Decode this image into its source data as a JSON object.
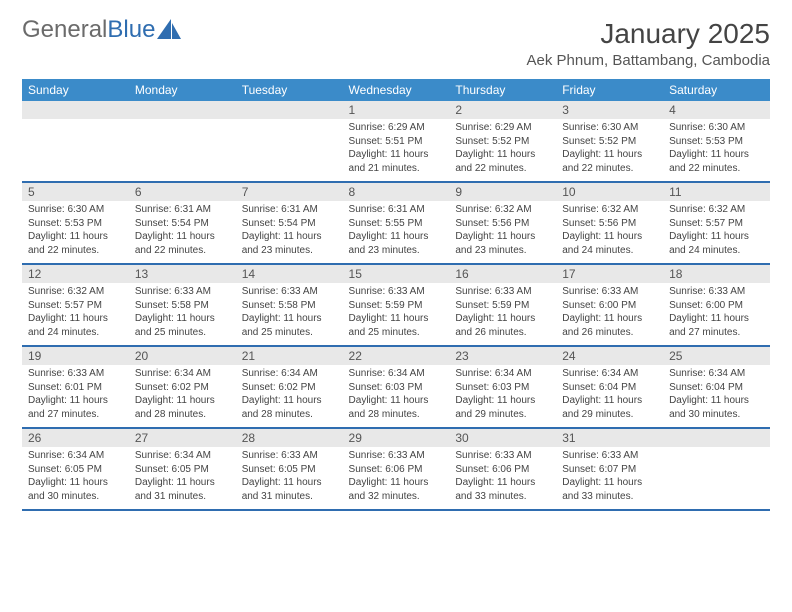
{
  "logo": {
    "word1": "General",
    "word2": "Blue"
  },
  "title": "January 2025",
  "location": "Aek Phnum, Battambang, Cambodia",
  "colors": {
    "header_bg": "#3b8bc9",
    "header_text": "#ffffff",
    "row_border": "#2f6db0",
    "daynum_bg": "#e8e8e8",
    "text": "#444444",
    "logo_gray": "#6b6b6b",
    "logo_blue": "#2f6db0"
  },
  "typography": {
    "title_fontsize": 28,
    "location_fontsize": 15,
    "header_fontsize": 12,
    "daynum_fontsize": 12,
    "body_fontsize": 10
  },
  "layout": {
    "columns": 7,
    "rows": 5
  },
  "weekdays": [
    "Sunday",
    "Monday",
    "Tuesday",
    "Wednesday",
    "Thursday",
    "Friday",
    "Saturday"
  ],
  "weeks": [
    [
      null,
      null,
      null,
      {
        "n": "1",
        "sr": "Sunrise: 6:29 AM",
        "ss": "Sunset: 5:51 PM",
        "d1": "Daylight: 11 hours",
        "d2": "and 21 minutes."
      },
      {
        "n": "2",
        "sr": "Sunrise: 6:29 AM",
        "ss": "Sunset: 5:52 PM",
        "d1": "Daylight: 11 hours",
        "d2": "and 22 minutes."
      },
      {
        "n": "3",
        "sr": "Sunrise: 6:30 AM",
        "ss": "Sunset: 5:52 PM",
        "d1": "Daylight: 11 hours",
        "d2": "and 22 minutes."
      },
      {
        "n": "4",
        "sr": "Sunrise: 6:30 AM",
        "ss": "Sunset: 5:53 PM",
        "d1": "Daylight: 11 hours",
        "d2": "and 22 minutes."
      }
    ],
    [
      {
        "n": "5",
        "sr": "Sunrise: 6:30 AM",
        "ss": "Sunset: 5:53 PM",
        "d1": "Daylight: 11 hours",
        "d2": "and 22 minutes."
      },
      {
        "n": "6",
        "sr": "Sunrise: 6:31 AM",
        "ss": "Sunset: 5:54 PM",
        "d1": "Daylight: 11 hours",
        "d2": "and 22 minutes."
      },
      {
        "n": "7",
        "sr": "Sunrise: 6:31 AM",
        "ss": "Sunset: 5:54 PM",
        "d1": "Daylight: 11 hours",
        "d2": "and 23 minutes."
      },
      {
        "n": "8",
        "sr": "Sunrise: 6:31 AM",
        "ss": "Sunset: 5:55 PM",
        "d1": "Daylight: 11 hours",
        "d2": "and 23 minutes."
      },
      {
        "n": "9",
        "sr": "Sunrise: 6:32 AM",
        "ss": "Sunset: 5:56 PM",
        "d1": "Daylight: 11 hours",
        "d2": "and 23 minutes."
      },
      {
        "n": "10",
        "sr": "Sunrise: 6:32 AM",
        "ss": "Sunset: 5:56 PM",
        "d1": "Daylight: 11 hours",
        "d2": "and 24 minutes."
      },
      {
        "n": "11",
        "sr": "Sunrise: 6:32 AM",
        "ss": "Sunset: 5:57 PM",
        "d1": "Daylight: 11 hours",
        "d2": "and 24 minutes."
      }
    ],
    [
      {
        "n": "12",
        "sr": "Sunrise: 6:32 AM",
        "ss": "Sunset: 5:57 PM",
        "d1": "Daylight: 11 hours",
        "d2": "and 24 minutes."
      },
      {
        "n": "13",
        "sr": "Sunrise: 6:33 AM",
        "ss": "Sunset: 5:58 PM",
        "d1": "Daylight: 11 hours",
        "d2": "and 25 minutes."
      },
      {
        "n": "14",
        "sr": "Sunrise: 6:33 AM",
        "ss": "Sunset: 5:58 PM",
        "d1": "Daylight: 11 hours",
        "d2": "and 25 minutes."
      },
      {
        "n": "15",
        "sr": "Sunrise: 6:33 AM",
        "ss": "Sunset: 5:59 PM",
        "d1": "Daylight: 11 hours",
        "d2": "and 25 minutes."
      },
      {
        "n": "16",
        "sr": "Sunrise: 6:33 AM",
        "ss": "Sunset: 5:59 PM",
        "d1": "Daylight: 11 hours",
        "d2": "and 26 minutes."
      },
      {
        "n": "17",
        "sr": "Sunrise: 6:33 AM",
        "ss": "Sunset: 6:00 PM",
        "d1": "Daylight: 11 hours",
        "d2": "and 26 minutes."
      },
      {
        "n": "18",
        "sr": "Sunrise: 6:33 AM",
        "ss": "Sunset: 6:00 PM",
        "d1": "Daylight: 11 hours",
        "d2": "and 27 minutes."
      }
    ],
    [
      {
        "n": "19",
        "sr": "Sunrise: 6:33 AM",
        "ss": "Sunset: 6:01 PM",
        "d1": "Daylight: 11 hours",
        "d2": "and 27 minutes."
      },
      {
        "n": "20",
        "sr": "Sunrise: 6:34 AM",
        "ss": "Sunset: 6:02 PM",
        "d1": "Daylight: 11 hours",
        "d2": "and 28 minutes."
      },
      {
        "n": "21",
        "sr": "Sunrise: 6:34 AM",
        "ss": "Sunset: 6:02 PM",
        "d1": "Daylight: 11 hours",
        "d2": "and 28 minutes."
      },
      {
        "n": "22",
        "sr": "Sunrise: 6:34 AM",
        "ss": "Sunset: 6:03 PM",
        "d1": "Daylight: 11 hours",
        "d2": "and 28 minutes."
      },
      {
        "n": "23",
        "sr": "Sunrise: 6:34 AM",
        "ss": "Sunset: 6:03 PM",
        "d1": "Daylight: 11 hours",
        "d2": "and 29 minutes."
      },
      {
        "n": "24",
        "sr": "Sunrise: 6:34 AM",
        "ss": "Sunset: 6:04 PM",
        "d1": "Daylight: 11 hours",
        "d2": "and 29 minutes."
      },
      {
        "n": "25",
        "sr": "Sunrise: 6:34 AM",
        "ss": "Sunset: 6:04 PM",
        "d1": "Daylight: 11 hours",
        "d2": "and 30 minutes."
      }
    ],
    [
      {
        "n": "26",
        "sr": "Sunrise: 6:34 AM",
        "ss": "Sunset: 6:05 PM",
        "d1": "Daylight: 11 hours",
        "d2": "and 30 minutes."
      },
      {
        "n": "27",
        "sr": "Sunrise: 6:34 AM",
        "ss": "Sunset: 6:05 PM",
        "d1": "Daylight: 11 hours",
        "d2": "and 31 minutes."
      },
      {
        "n": "28",
        "sr": "Sunrise: 6:33 AM",
        "ss": "Sunset: 6:05 PM",
        "d1": "Daylight: 11 hours",
        "d2": "and 31 minutes."
      },
      {
        "n": "29",
        "sr": "Sunrise: 6:33 AM",
        "ss": "Sunset: 6:06 PM",
        "d1": "Daylight: 11 hours",
        "d2": "and 32 minutes."
      },
      {
        "n": "30",
        "sr": "Sunrise: 6:33 AM",
        "ss": "Sunset: 6:06 PM",
        "d1": "Daylight: 11 hours",
        "d2": "and 33 minutes."
      },
      {
        "n": "31",
        "sr": "Sunrise: 6:33 AM",
        "ss": "Sunset: 6:07 PM",
        "d1": "Daylight: 11 hours",
        "d2": "and 33 minutes."
      },
      null
    ]
  ]
}
